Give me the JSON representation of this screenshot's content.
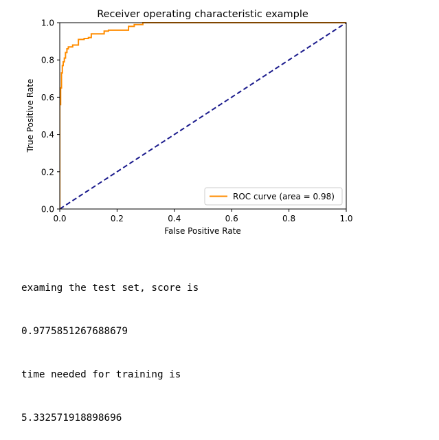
{
  "chart_data": {
    "type": "line",
    "title": "Receiver operating characteristic example",
    "xlabel": "False Positive Rate",
    "ylabel": "True Positive Rate",
    "xlim": [
      0.0,
      1.0
    ],
    "ylim": [
      0.0,
      1.0
    ],
    "xticks": [
      "0.0",
      "0.2",
      "0.4",
      "0.6",
      "0.8",
      "1.0"
    ],
    "yticks": [
      "0.0",
      "0.2",
      "0.4",
      "0.6",
      "0.8",
      "1.0"
    ],
    "grid": false,
    "legend_position": "lower-right",
    "series": [
      {
        "name": "ROC curve (area = 0.98)",
        "color": "#ff8c00",
        "style": "solid",
        "x": [
          0.0,
          0.0,
          0.003,
          0.003,
          0.006,
          0.006,
          0.009,
          0.009,
          0.012,
          0.012,
          0.016,
          0.016,
          0.02,
          0.02,
          0.025,
          0.025,
          0.03,
          0.03,
          0.045,
          0.045,
          0.065,
          0.065,
          0.085,
          0.085,
          0.1,
          0.1,
          0.11,
          0.11,
          0.155,
          0.155,
          0.17,
          0.17,
          0.24,
          0.24,
          0.26,
          0.26,
          0.29,
          0.29,
          1.0
        ],
        "y": [
          0.0,
          0.56,
          0.56,
          0.65,
          0.65,
          0.73,
          0.73,
          0.77,
          0.77,
          0.79,
          0.79,
          0.81,
          0.81,
          0.84,
          0.84,
          0.86,
          0.86,
          0.87,
          0.87,
          0.88,
          0.88,
          0.91,
          0.91,
          0.915,
          0.915,
          0.92,
          0.92,
          0.94,
          0.94,
          0.955,
          0.955,
          0.96,
          0.96,
          0.98,
          0.98,
          0.99,
          0.99,
          1.0,
          1.0
        ]
      },
      {
        "name": "",
        "color": "#1a1a8c",
        "style": "dashed",
        "x": [
          0.0,
          1.0
        ],
        "y": [
          0.0,
          1.0
        ]
      }
    ]
  },
  "output": {
    "lines": [
      "examing the test set, score is",
      "0.9775851267688679",
      "time needed for training is",
      "5.332571918898696"
    ]
  }
}
